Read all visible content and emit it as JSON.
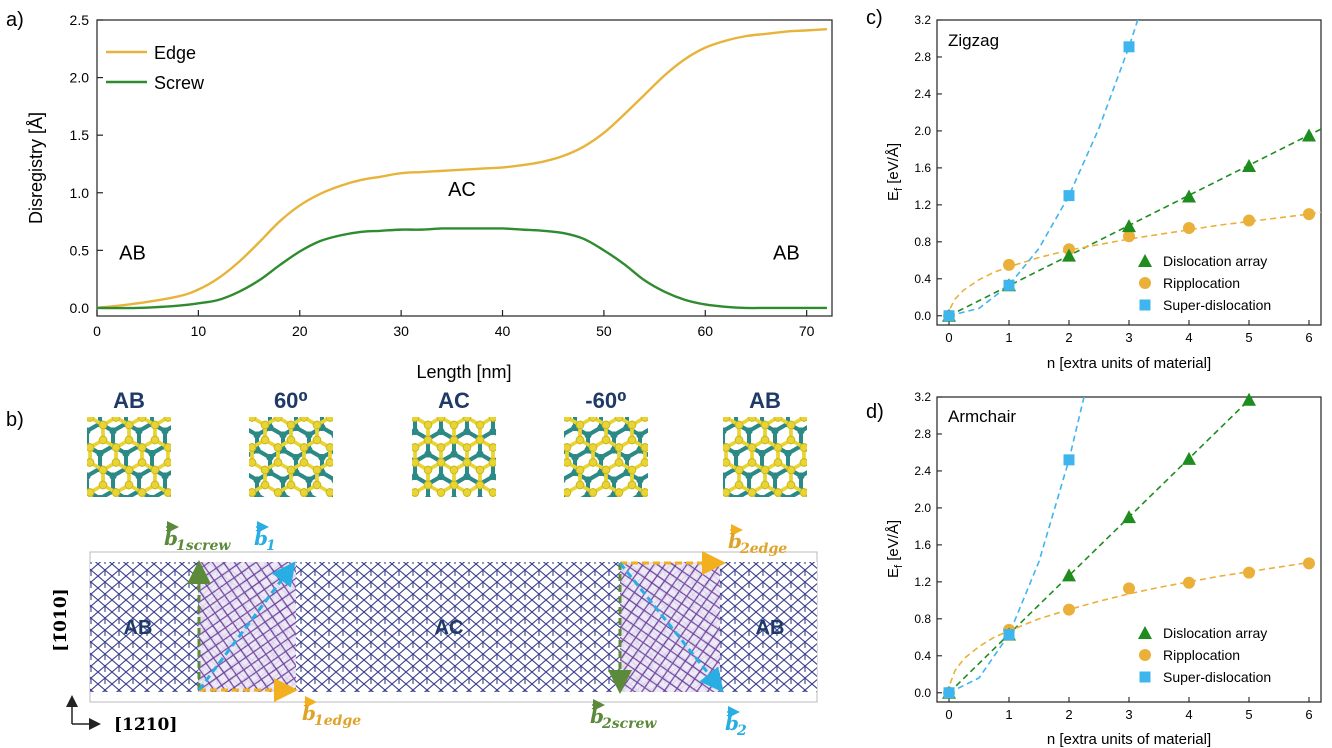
{
  "panels": {
    "a": {
      "label": "a)",
      "chart_data": {
        "type": "line",
        "xlabel": "Length [nm]",
        "ylabel": "Disregistry [Å]",
        "xlim": [
          0,
          72.5
        ],
        "ylim": [
          -0.07,
          2.5
        ],
        "xticks": [
          0,
          10,
          20,
          30,
          40,
          50,
          60,
          70
        ],
        "xtick_labels": [
          "0",
          "10",
          "20",
          "30",
          "40",
          "50",
          "60",
          "70"
        ],
        "yticks": [
          0.0,
          0.5,
          1.0,
          1.5,
          2.0,
          2.5
        ],
        "ytick_labels": [
          "0.0",
          "0.5",
          "1.0",
          "1.5",
          "2.0",
          "2.5"
        ],
        "legend": "top-left",
        "grid": false,
        "series": [
          {
            "name": "Edge",
            "color": "#E8B33A",
            "x": [
              0,
              4,
              8,
              10,
              12,
              14,
              16,
              18,
              20,
              22,
              24,
              26,
              28,
              30,
              32,
              34,
              36,
              38,
              40,
              42,
              44,
              46,
              48,
              50,
              52,
              54,
              56,
              58,
              60,
              62,
              64,
              66,
              68,
              70,
              72
            ],
            "y": [
              0.0,
              0.04,
              0.1,
              0.16,
              0.26,
              0.4,
              0.57,
              0.75,
              0.89,
              0.99,
              1.06,
              1.11,
              1.14,
              1.17,
              1.18,
              1.19,
              1.2,
              1.21,
              1.22,
              1.24,
              1.27,
              1.32,
              1.4,
              1.52,
              1.68,
              1.85,
              2.02,
              2.16,
              2.26,
              2.32,
              2.36,
              2.38,
              2.4,
              2.41,
              2.42
            ]
          },
          {
            "name": "Screw",
            "color": "#2E8B2E",
            "x": [
              0,
              4,
              8,
              10,
              12,
              14,
              16,
              18,
              20,
              22,
              24,
              26,
              28,
              30,
              32,
              34,
              36,
              38,
              40,
              42,
              44,
              46,
              48,
              50,
              52,
              54,
              56,
              58,
              60,
              62,
              64,
              66,
              68,
              70,
              72
            ],
            "y": [
              0.0,
              0.0,
              0.02,
              0.04,
              0.07,
              0.14,
              0.24,
              0.37,
              0.49,
              0.58,
              0.63,
              0.66,
              0.67,
              0.68,
              0.68,
              0.69,
              0.69,
              0.69,
              0.69,
              0.68,
              0.67,
              0.65,
              0.6,
              0.5,
              0.38,
              0.24,
              0.14,
              0.07,
              0.03,
              0.01,
              0.0,
              0.0,
              0.0,
              0.0,
              0.0
            ]
          }
        ],
        "annotations": [
          {
            "text": "AB",
            "x": 3.5,
            "y": 0.42
          },
          {
            "text": "AC",
            "x": 36,
            "y": 0.97
          },
          {
            "text": "AB",
            "x": 68,
            "y": 0.42
          }
        ]
      }
    },
    "b": {
      "label": "b)",
      "stackings": [
        "AB",
        "60⁰",
        "AC",
        "-60⁰",
        "AB"
      ],
      "regions": [
        "AB",
        "AC",
        "AB"
      ],
      "vectors": {
        "b1screw_main": "b",
        "b1screw_sub": "1screw",
        "b1_main": "b",
        "b1_sub": "1",
        "b1edge_main": "b",
        "b1edge_sub": "1edge",
        "b2edge_main": "b",
        "b2edge_sub": "2edge",
        "b2screw_main": "b",
        "b2screw_sub": "2screw",
        "b2_main": "b",
        "b2_sub": "2"
      },
      "axes": {
        "vertical": "[1̄010]",
        "horizontal": "[12̄10]"
      },
      "colors": {
        "lattice": "#3a3f8f",
        "domain_wall": "#7a3a99",
        "screw": "#5b8a3a",
        "edge": "#f2b01e",
        "total": "#29aee3"
      }
    },
    "c": {
      "label": "c)",
      "chart_data": {
        "type": "scatter",
        "title": "Zigzag",
        "xlabel": "n [extra units of material]",
        "ylabel": "E_f [eV/Å]",
        "xlim": [
          -0.2,
          6.2
        ],
        "ylim": [
          -0.1,
          3.2
        ],
        "xticks": [
          0,
          1,
          2,
          3,
          4,
          5,
          6
        ],
        "yticks": [
          0.0,
          0.4,
          0.8,
          1.2,
          1.6,
          2.0,
          2.4,
          2.8,
          3.2
        ],
        "ytick_labels": [
          "0.0",
          "0.4",
          "0.8",
          "1.2",
          "1.6",
          "2.0",
          "2.4",
          "2.8",
          "3.2"
        ],
        "legend": "bottom-right",
        "series": [
          {
            "name": "Dislocation array",
            "marker": "triangle",
            "color": "#1e8c1e",
            "x": [
              0,
              1,
              2,
              3,
              4,
              5,
              6
            ],
            "y": [
              0.0,
              0.33,
              0.65,
              0.97,
              1.29,
              1.62,
              1.95
            ],
            "fit_x": [
              0,
              6.2
            ],
            "fit_y": [
              0.0,
              2.02
            ]
          },
          {
            "name": "Ripplocation",
            "marker": "circle",
            "color": "#EAB03A",
            "x": [
              0,
              1,
              2,
              3,
              4,
              5,
              6
            ],
            "y": [
              0.0,
              0.55,
              0.72,
              0.86,
              0.95,
              1.03,
              1.1
            ],
            "fit_x": [
              0.02,
              0.1,
              0.25,
              0.5,
              0.75,
              1,
              1.5,
              2,
              2.5,
              3,
              3.5,
              4,
              4.5,
              5,
              5.5,
              6,
              6.2
            ],
            "fit_y": [
              0.08,
              0.18,
              0.28,
              0.39,
              0.47,
              0.53,
              0.63,
              0.71,
              0.77,
              0.83,
              0.88,
              0.93,
              0.98,
              1.02,
              1.06,
              1.1,
              1.12
            ]
          },
          {
            "name": "Super-dislocation",
            "marker": "square",
            "color": "#3FB5EE",
            "x": [
              0,
              1,
              2,
              3
            ],
            "y": [
              0.0,
              0.33,
              1.3,
              2.91
            ],
            "fit_x": [
              0,
              0.5,
              1,
              1.5,
              2,
              2.5,
              3,
              3.17
            ],
            "fit_y": [
              0.0,
              0.08,
              0.33,
              0.73,
              1.3,
              2.03,
              2.91,
              3.25
            ]
          }
        ]
      }
    },
    "d": {
      "label": "d)",
      "chart_data": {
        "type": "scatter",
        "title": "Armchair",
        "xlabel": "n [extra units of material]",
        "ylabel": "E_f [eV/Å]",
        "xlim": [
          -0.2,
          6.2
        ],
        "ylim": [
          -0.1,
          3.2
        ],
        "xticks": [
          0,
          1,
          2,
          3,
          4,
          5,
          6
        ],
        "yticks": [
          0.0,
          0.4,
          0.8,
          1.2,
          1.6,
          2.0,
          2.4,
          2.8,
          3.2
        ],
        "ytick_labels": [
          "0.0",
          "0.4",
          "0.8",
          "1.2",
          "1.6",
          "2.0",
          "2.4",
          "2.8",
          "3.2"
        ],
        "legend": "bottom-right",
        "series": [
          {
            "name": "Dislocation array",
            "marker": "triangle",
            "color": "#1e8c1e",
            "x": [
              0,
              1,
              2,
              3,
              4,
              5
            ],
            "y": [
              0.0,
              0.63,
              1.27,
              1.9,
              2.53,
              3.17
            ],
            "fit_x": [
              0,
              5.05
            ],
            "fit_y": [
              0.0,
              3.2
            ]
          },
          {
            "name": "Ripplocation",
            "marker": "circle",
            "color": "#EAB03A",
            "x": [
              0,
              1,
              2,
              3,
              4,
              5,
              6
            ],
            "y": [
              0.0,
              0.68,
              0.9,
              1.13,
              1.19,
              1.3,
              1.4
            ],
            "fit_x": [
              0.02,
              0.1,
              0.25,
              0.5,
              0.75,
              1,
              1.5,
              2,
              2.5,
              3,
              3.5,
              4,
              4.5,
              5,
              5.5,
              6
            ],
            "fit_y": [
              0.1,
              0.24,
              0.37,
              0.5,
              0.6,
              0.67,
              0.8,
              0.9,
              0.99,
              1.07,
              1.14,
              1.2,
              1.26,
              1.31,
              1.36,
              1.41
            ]
          },
          {
            "name": "Super-dislocation",
            "marker": "square",
            "color": "#3FB5EE",
            "x": [
              0,
              1,
              2
            ],
            "y": [
              0.0,
              0.63,
              2.52
            ],
            "fit_x": [
              0,
              0.5,
              1,
              1.5,
              2,
              2.25
            ],
            "fit_y": [
              0.0,
              0.16,
              0.63,
              1.42,
              2.52,
              3.2
            ]
          }
        ]
      }
    }
  }
}
